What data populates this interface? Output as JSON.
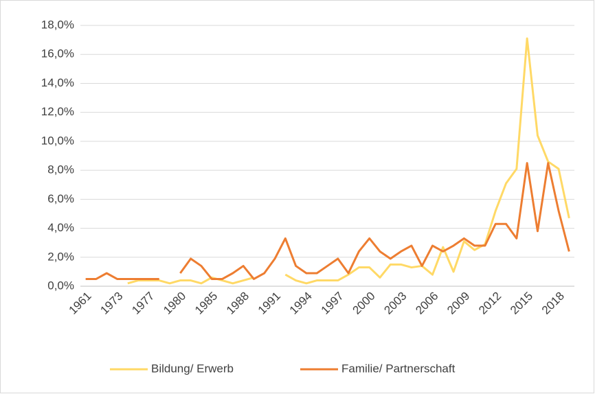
{
  "chart_data": {
    "type": "line",
    "categories": [
      "1961",
      null,
      null,
      "1973",
      null,
      null,
      "1977",
      null,
      null,
      "1980",
      null,
      null,
      "1985",
      null,
      null,
      "1988",
      null,
      null,
      "1991",
      null,
      null,
      "1994",
      null,
      null,
      "1997",
      null,
      null,
      "2000",
      null,
      null,
      "2003",
      null,
      null,
      "2006",
      null,
      null,
      "2009",
      null,
      null,
      "2012",
      null,
      null,
      "2015",
      null,
      null,
      "2018",
      null
    ],
    "series": [
      {
        "name": "Bildung/ Erwerb",
        "color": "#ffd966",
        "values": [
          null,
          null,
          null,
          null,
          0.2,
          0.4,
          0.4,
          0.4,
          0.2,
          0.4,
          0.4,
          0.2,
          0.6,
          0.4,
          0.2,
          0.4,
          0.6,
          null,
          null,
          0.8,
          0.4,
          0.2,
          0.4,
          0.4,
          0.4,
          0.8,
          1.3,
          1.3,
          0.6,
          1.5,
          1.5,
          1.3,
          1.4,
          0.8,
          2.7,
          1.0,
          3.1,
          2.5,
          2.9,
          5.2,
          7.1,
          8.1,
          17.1,
          10.4,
          8.6,
          8.1,
          4.7
        ]
      },
      {
        "name": "Familie/ Partnerschaft",
        "color": "#ed7d31",
        "values": [
          0.5,
          0.5,
          0.9,
          0.5,
          0.5,
          0.5,
          0.5,
          0.5,
          null,
          0.9,
          1.9,
          1.4,
          0.5,
          0.5,
          0.9,
          1.4,
          0.5,
          0.9,
          1.9,
          3.3,
          1.4,
          0.9,
          0.9,
          1.4,
          1.9,
          0.9,
          2.4,
          3.3,
          2.4,
          1.9,
          2.4,
          2.8,
          1.4,
          2.8,
          2.4,
          2.8,
          3.3,
          2.8,
          2.8,
          4.3,
          4.3,
          3.3,
          8.5,
          3.8,
          8.5,
          5.2,
          2.4
        ]
      }
    ],
    "ylim": [
      0,
      18
    ],
    "yticks": [
      {
        "value": 0,
        "label": "0,0%"
      },
      {
        "value": 2,
        "label": "2,0%"
      },
      {
        "value": 4,
        "label": "4,0%"
      },
      {
        "value": 6,
        "label": "6,0%"
      },
      {
        "value": 8,
        "label": "8,0%"
      },
      {
        "value": 10,
        "label": "10,0%"
      },
      {
        "value": 12,
        "label": "12,0%"
      },
      {
        "value": 14,
        "label": "14,0%"
      },
      {
        "value": 16,
        "label": "16,0%"
      },
      {
        "value": 18,
        "label": "18,0%"
      }
    ],
    "grid": true,
    "legend": "bottom"
  }
}
